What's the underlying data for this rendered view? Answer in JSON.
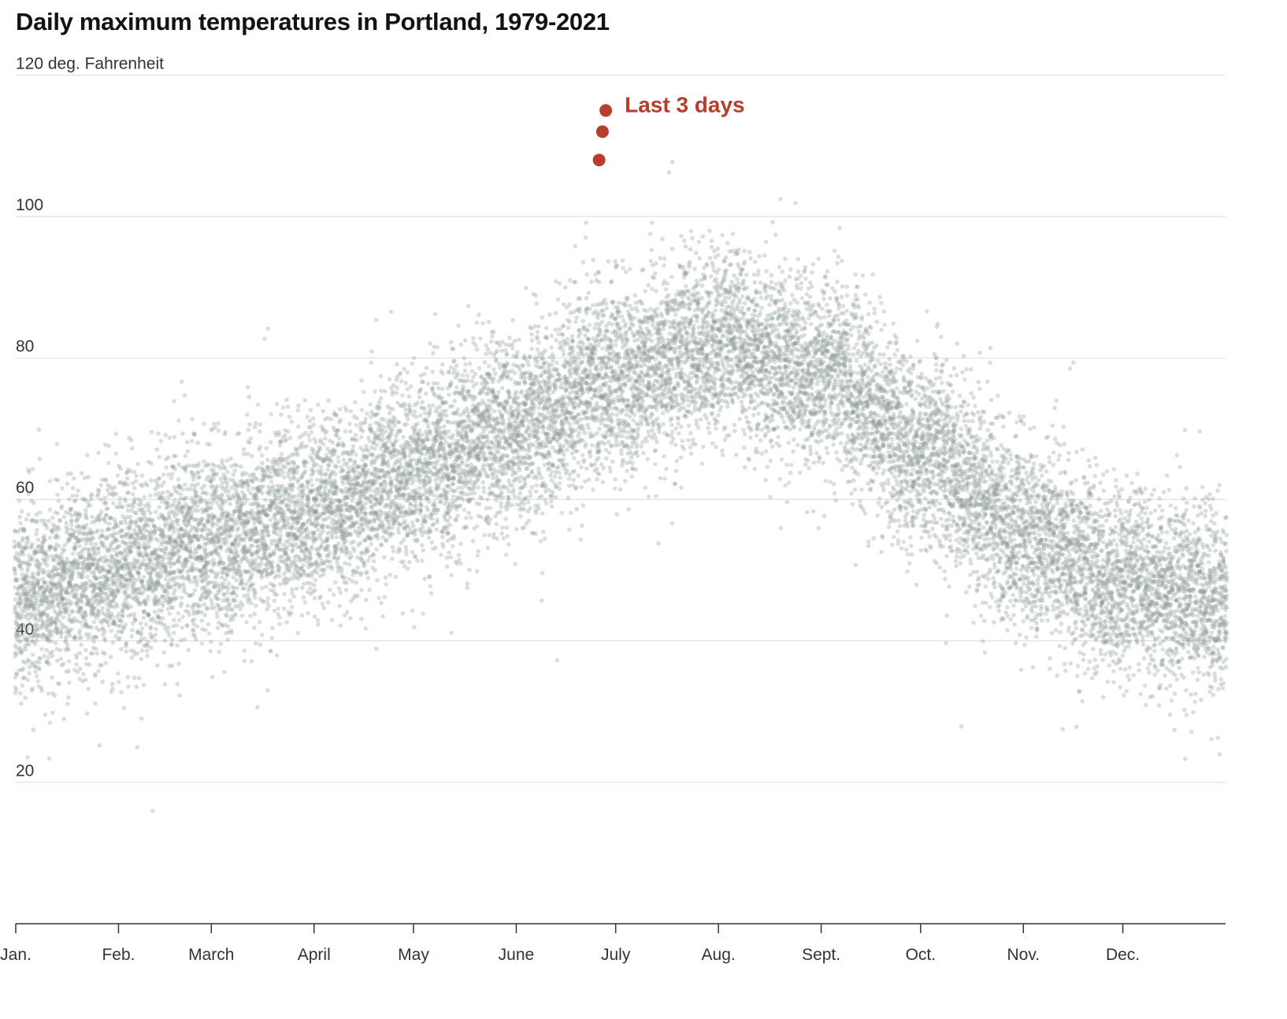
{
  "chart_data": {
    "type": "scatter",
    "title": "Daily maximum temperatures in Portland, 1979-2021",
    "ylabel_unit": "120 deg. Fahrenheit",
    "ylim": [
      0,
      122
    ],
    "y_ticks": [
      {
        "value": 20,
        "label": "20"
      },
      {
        "value": 40,
        "label": "40"
      },
      {
        "value": 60,
        "label": "60"
      },
      {
        "value": 80,
        "label": "80"
      },
      {
        "value": 100,
        "label": "100"
      },
      {
        "value": 120,
        "label": "120 deg. Fahrenheit"
      }
    ],
    "xlim_day_of_year": [
      1,
      366
    ],
    "x_ticks": [
      {
        "day": 1,
        "label": "Jan."
      },
      {
        "day": 32,
        "label": "Feb."
      },
      {
        "day": 60,
        "label": "March"
      },
      {
        "day": 91,
        "label": "April"
      },
      {
        "day": 121,
        "label": "May"
      },
      {
        "day": 152,
        "label": "June"
      },
      {
        "day": 182,
        "label": "July"
      },
      {
        "day": 213,
        "label": "Aug."
      },
      {
        "day": 244,
        "label": "Sept."
      },
      {
        "day": 274,
        "label": "Oct."
      },
      {
        "day": 305,
        "label": "Nov."
      },
      {
        "day": 335,
        "label": "Dec."
      }
    ],
    "grid": true,
    "series": [
      {
        "color": "#8c9b98",
        "years": "1979-2021",
        "seasonal_mean": [
          {
            "day": 1,
            "value": 46
          },
          {
            "day": 32,
            "value": 50
          },
          {
            "day": 60,
            "value": 54
          },
          {
            "day": 91,
            "value": 58
          },
          {
            "day": 121,
            "value": 64
          },
          {
            "day": 152,
            "value": 70
          },
          {
            "day": 182,
            "value": 77
          },
          {
            "day": 213,
            "value": 82
          },
          {
            "day": 244,
            "value": 78
          },
          {
            "day": 274,
            "value": 67
          },
          {
            "day": 305,
            "value": 55
          },
          {
            "day": 335,
            "value": 48
          },
          {
            "day": 366,
            "value": 46
          }
        ],
        "spread_sd": 6.5
      },
      {
        "name": "Last 3 days",
        "color": "#b73e2c",
        "points": [
          {
            "day": 177,
            "value": 108
          },
          {
            "day": 178,
            "value": 112
          },
          {
            "day": 179,
            "value": 115
          }
        ]
      }
    ],
    "annotations": [
      {
        "text": "Last 3 days",
        "color": "#b73e2c"
      }
    ]
  }
}
